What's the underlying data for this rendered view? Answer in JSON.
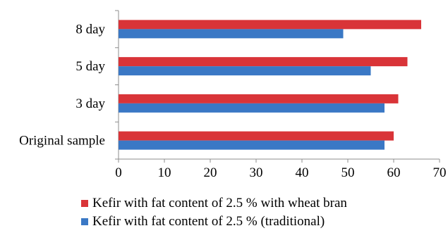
{
  "chart_data": {
    "type": "bar",
    "orientation": "horizontal",
    "categories": [
      "Original sample",
      "3 day",
      "5 day",
      "8 day"
    ],
    "series": [
      {
        "name": "Kefir with fat content of 2.5 % with wheat bran",
        "values": [
          60,
          61,
          63,
          66
        ],
        "color": "#d93438"
      },
      {
        "name": "Kefir with fat content of 2.5 % (traditional)",
        "values": [
          58,
          58,
          55,
          49
        ],
        "color": "#3a78c5"
      }
    ],
    "xlim": [
      0,
      70
    ],
    "xticks": [
      0,
      10,
      20,
      30,
      40,
      50,
      60,
      70
    ],
    "grid": false,
    "legend": "bottom"
  }
}
